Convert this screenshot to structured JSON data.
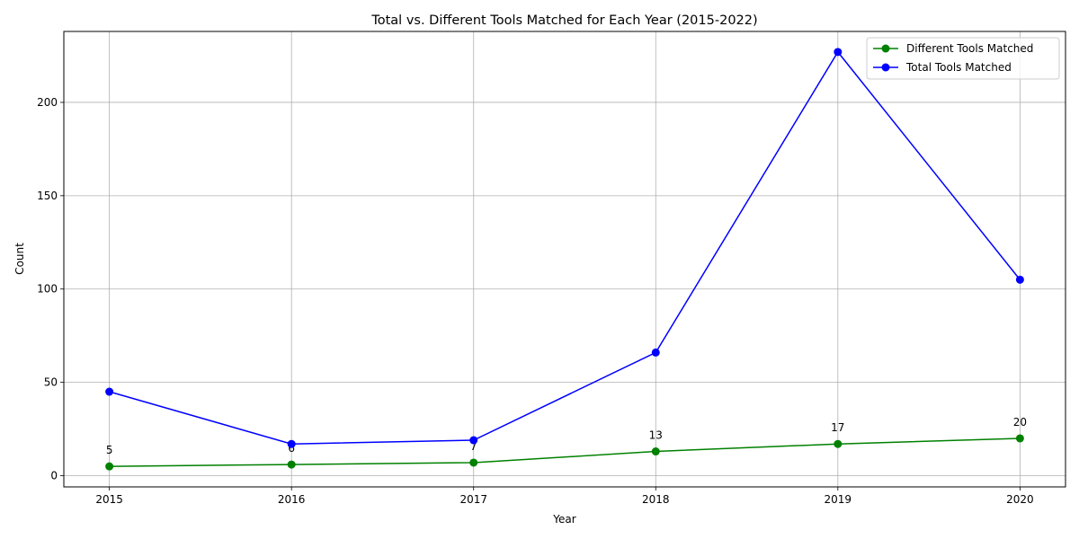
{
  "chart_data": {
    "type": "line",
    "title": "Total vs. Different Tools Matched for Each Year (2015-2022)",
    "xlabel": "Year",
    "ylabel": "Count",
    "x": [
      2015,
      2016,
      2017,
      2018,
      2019,
      2020
    ],
    "x_tick_labels": [
      "2015",
      "2016",
      "2017",
      "2018",
      "2019",
      "2020"
    ],
    "y_ticks": [
      0,
      50,
      100,
      150,
      200
    ],
    "y_tick_labels": [
      "0",
      "50",
      "100",
      "150",
      "200"
    ],
    "xlim": [
      2014.75,
      2020.25
    ],
    "ylim": [
      -6,
      238
    ],
    "grid": true,
    "legend_position": "top-right",
    "series": [
      {
        "name": "Different Tools Matched",
        "color": "#008000",
        "marker": "circle",
        "values": [
          5,
          6,
          7,
          13,
          17,
          20
        ],
        "data_labels": [
          "5",
          "6",
          "7",
          "13",
          "17",
          "20"
        ]
      },
      {
        "name": "Total Tools Matched",
        "color": "#0000ff",
        "marker": "circle",
        "values": [
          45,
          17,
          19,
          66,
          227,
          105
        ]
      }
    ]
  }
}
